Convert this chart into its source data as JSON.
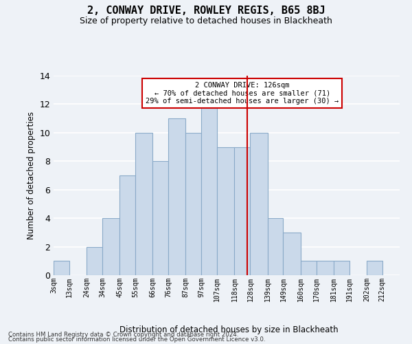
{
  "title": "2, CONWAY DRIVE, ROWLEY REGIS, B65 8BJ",
  "subtitle": "Size of property relative to detached houses in Blackheath",
  "xlabel": "Distribution of detached houses by size in Blackheath",
  "ylabel": "Number of detached properties",
  "bar_labels": [
    "3sqm",
    "13sqm",
    "24sqm",
    "34sqm",
    "45sqm",
    "55sqm",
    "66sqm",
    "76sqm",
    "87sqm",
    "97sqm",
    "107sqm",
    "118sqm",
    "128sqm",
    "139sqm",
    "149sqm",
    "160sqm",
    "170sqm",
    "181sqm",
    "191sqm",
    "202sqm",
    "212sqm"
  ],
  "bar_values": [
    1,
    0,
    2,
    4,
    7,
    10,
    8,
    11,
    10,
    12,
    9,
    9,
    10,
    4,
    3,
    1,
    1,
    1,
    0,
    1
  ],
  "bar_color": "#cad9ea",
  "bar_edge_color": "#8aaac8",
  "vline_color": "#cc0000",
  "vline_x": 126,
  "annotation_line1": "2 CONWAY DRIVE: 126sqm",
  "annotation_line2": "← 70% of detached houses are smaller (71)",
  "annotation_line3": "29% of semi-detached houses are larger (30) →",
  "ylim": [
    0,
    14
  ],
  "yticks": [
    0,
    2,
    4,
    6,
    8,
    10,
    12,
    14
  ],
  "bg_color": "#eef2f7",
  "grid_color": "#ffffff",
  "bin_starts": [
    3,
    13,
    24,
    34,
    45,
    55,
    66,
    76,
    87,
    97,
    107,
    118,
    128,
    139,
    149,
    160,
    170,
    181,
    191,
    202,
    212
  ],
  "footnote1": "Contains HM Land Registry data © Crown copyright and database right 2024.",
  "footnote2": "Contains public sector information licensed under the Open Government Licence v3.0."
}
